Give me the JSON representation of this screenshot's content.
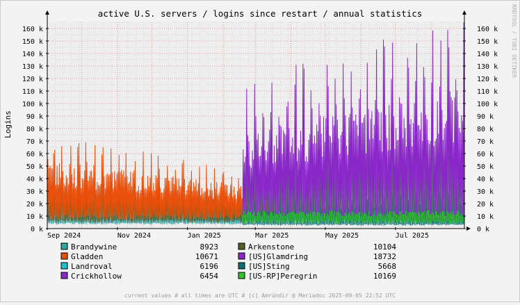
{
  "chart_data": {
    "type": "line",
    "title": "active U.S. servers / logins since restart / annual statistics",
    "ylabel": "Logins",
    "ylim": [
      0,
      165000
    ],
    "yticks": [
      0,
      10000,
      20000,
      30000,
      40000,
      50000,
      60000,
      70000,
      80000,
      90000,
      100000,
      110000,
      120000,
      130000,
      140000,
      150000,
      160000
    ],
    "ytick_labels": [
      "0 k",
      "10 k",
      "20 k",
      "30 k",
      "40 k",
      "50 k",
      "60 k",
      "70 k",
      "80 k",
      "90 k",
      "100 k",
      "110 k",
      "120 k",
      "130 k",
      "140 k",
      "150 k",
      "160 k"
    ],
    "xrange_days": [
      0,
      363
    ],
    "xticks": [
      {
        "day": 0,
        "label": "Sep 2024"
      },
      {
        "day": 61,
        "label": "Nov 2024"
      },
      {
        "day": 122,
        "label": "Jan 2025"
      },
      {
        "day": 181,
        "label": "Mar 2025"
      },
      {
        "day": 242,
        "label": "May 2025"
      },
      {
        "day": 303,
        "label": "Jul 2025"
      }
    ],
    "side_text": "RRDTOOL / TOBI OETIKER",
    "footer": "current values # all times are UTC # [c] Amrúndir @ Meriadoc 2025-09-05 22:52 UTC",
    "grid": true,
    "series": [
      {
        "name": "Brandywine",
        "current": "8923",
        "color": "#2fa79c",
        "start": 0,
        "lo": 4000,
        "hi": 30000,
        "peak_boost": 1.35,
        "end_hi": 9000
      },
      {
        "name": "Arkenstone",
        "current": "10104",
        "color": "#595f26",
        "start": 0,
        "lo": 6000,
        "hi": 40000,
        "peak_boost": 1.3,
        "end_hi": 12000
      },
      {
        "name": "Gladden",
        "current": "10671",
        "color": "#e8500c",
        "start": 0,
        "lo": 9000,
        "hi": 62000,
        "peak_boost": 1.35,
        "end_hi": 13000
      },
      {
        "name": "[US]Glamdring",
        "current": "18732",
        "color": "#8a27c9",
        "start": 170,
        "lo": 12000,
        "hi": 85000,
        "peak_boost": 1.55,
        "end_hi": 125000
      },
      {
        "name": "Landroval",
        "current": "6196",
        "color": "#1ec0cf",
        "start": 0,
        "lo": 6000,
        "hi": 33000,
        "peak_boost": 1.25,
        "end_hi": 8000
      },
      {
        "name": "[US]Sting",
        "current": "5668",
        "color": "#0d6f73",
        "start": 170,
        "lo": 3000,
        "hi": 22000,
        "peak_boost": 1.3,
        "end_hi": 35000
      },
      {
        "name": "Crickhollow",
        "current": "6454",
        "color": "#8b29c8",
        "start": 0,
        "lo": 5000,
        "hi": 32000,
        "peak_boost": 1.3,
        "end_hi": 8000
      },
      {
        "name": "[US-RP]Peregrin",
        "current": "10169",
        "color": "#35c12c",
        "start": 170,
        "lo": 5000,
        "hi": 58000,
        "peak_boost": 1.4,
        "end_hi": 80000
      }
    ]
  }
}
